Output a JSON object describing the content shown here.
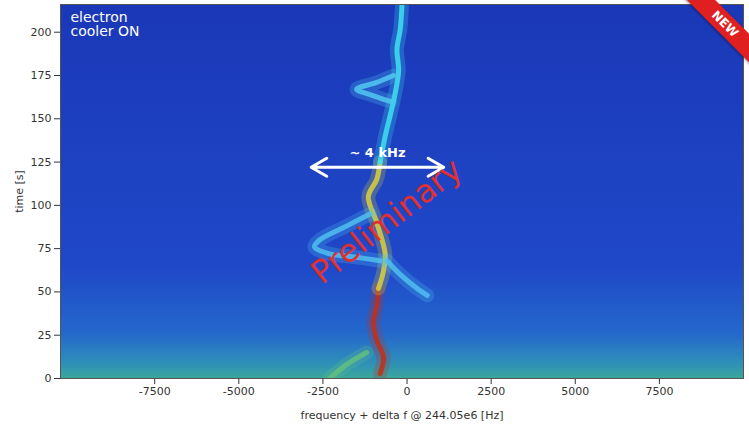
{
  "chart_data": {
    "type": "spectrogram",
    "x_label": "frequency + delta f @ 244.05e6 [Hz]",
    "y_label": "time [s]",
    "xlim": [
      -10300,
      10000
    ],
    "xticks": [
      -7500,
      -5000,
      -2500,
      0,
      2500,
      5000,
      7500
    ],
    "ylim": [
      0,
      216
    ],
    "yticks": [
      0,
      25,
      50,
      75,
      100,
      125,
      150,
      175,
      200
    ],
    "series": [
      {
        "color": "#c0301a",
        "x": [
          -800,
          -700,
          -900,
          -1000,
          -900,
          -850
        ],
        "y": [
          3,
          12,
          22,
          32,
          42,
          52
        ]
      },
      {
        "color": "#d8d040",
        "x": [
          -850,
          -700,
          -650,
          -900,
          -1150,
          -900,
          -800
        ],
        "y": [
          52,
          62,
          72,
          90,
          105,
          115,
          125
        ]
      },
      {
        "color": "#40e0f0",
        "x": [
          -800,
          -650,
          -500,
          -350,
          -250,
          -300,
          -200,
          -150
        ],
        "y": [
          125,
          140,
          152,
          165,
          178,
          190,
          202,
          216
        ]
      },
      {
        "color": "#50c0f0",
        "x": [
          -1100,
          -1800,
          -2600,
          -2750,
          -2300,
          -1500,
          -800
        ],
        "y": [
          95,
          88,
          80,
          76,
          72,
          70,
          68
        ]
      },
      {
        "color": "#50c0f0",
        "x": [
          -600,
          -200,
          300,
          600
        ],
        "y": [
          68,
          60,
          52,
          48
        ]
      },
      {
        "color": "#50c8f0",
        "x": [
          -400,
          -900,
          -1500,
          -1100,
          -500
        ],
        "y": [
          175,
          171,
          167,
          164,
          160
        ]
      },
      {
        "color": "#60c080",
        "x": [
          -2300,
          -1800,
          -1200
        ],
        "y": [
          0,
          8,
          15
        ]
      }
    ],
    "annotations": [
      {
        "text": "electron cooler ON"
      },
      {
        "text": "~ 4 kHz",
        "x": [
          -2850,
          1090
        ],
        "y": 122
      },
      {
        "text": "Preliminary"
      },
      {
        "text": "NEW"
      }
    ]
  }
}
